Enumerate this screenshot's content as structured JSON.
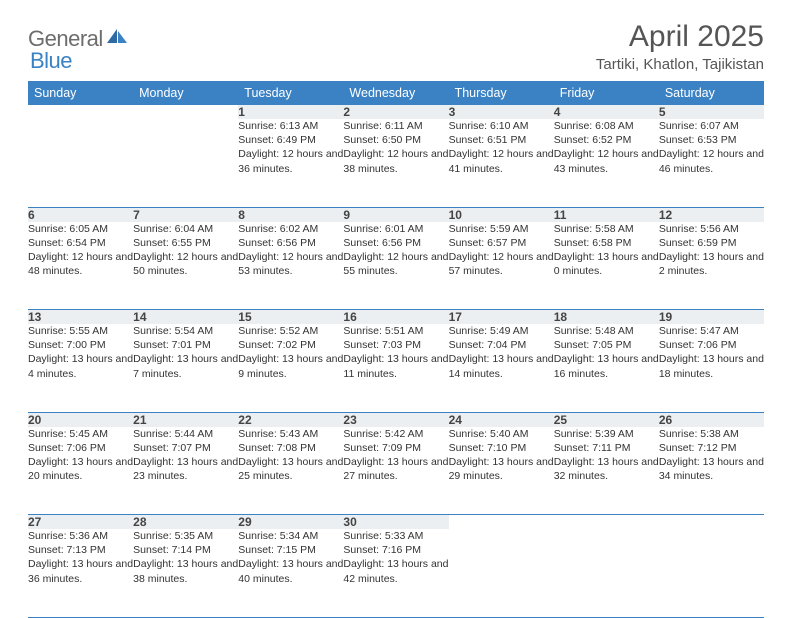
{
  "logo": {
    "text1": "General",
    "text2": "Blue"
  },
  "title": "April 2025",
  "location": "Tartiki, Khatlon, Tajikistan",
  "colors": {
    "header_bg": "#3b82c4",
    "daynum_bg": "#eceff1",
    "border": "#3b82c4",
    "title_color": "#555555",
    "logo_gray": "#6d6d6d",
    "logo_blue": "#3b82c4"
  },
  "weekdays": [
    "Sunday",
    "Monday",
    "Tuesday",
    "Wednesday",
    "Thursday",
    "Friday",
    "Saturday"
  ],
  "weeks": [
    {
      "nums": [
        "",
        "",
        "1",
        "2",
        "3",
        "4",
        "5"
      ],
      "cells": [
        null,
        null,
        {
          "sr": "Sunrise: 6:13 AM",
          "ss": "Sunset: 6:49 PM",
          "dl": "Daylight: 12 hours and 36 minutes."
        },
        {
          "sr": "Sunrise: 6:11 AM",
          "ss": "Sunset: 6:50 PM",
          "dl": "Daylight: 12 hours and 38 minutes."
        },
        {
          "sr": "Sunrise: 6:10 AM",
          "ss": "Sunset: 6:51 PM",
          "dl": "Daylight: 12 hours and 41 minutes."
        },
        {
          "sr": "Sunrise: 6:08 AM",
          "ss": "Sunset: 6:52 PM",
          "dl": "Daylight: 12 hours and 43 minutes."
        },
        {
          "sr": "Sunrise: 6:07 AM",
          "ss": "Sunset: 6:53 PM",
          "dl": "Daylight: 12 hours and 46 minutes."
        }
      ]
    },
    {
      "nums": [
        "6",
        "7",
        "8",
        "9",
        "10",
        "11",
        "12"
      ],
      "cells": [
        {
          "sr": "Sunrise: 6:05 AM",
          "ss": "Sunset: 6:54 PM",
          "dl": "Daylight: 12 hours and 48 minutes."
        },
        {
          "sr": "Sunrise: 6:04 AM",
          "ss": "Sunset: 6:55 PM",
          "dl": "Daylight: 12 hours and 50 minutes."
        },
        {
          "sr": "Sunrise: 6:02 AM",
          "ss": "Sunset: 6:56 PM",
          "dl": "Daylight: 12 hours and 53 minutes."
        },
        {
          "sr": "Sunrise: 6:01 AM",
          "ss": "Sunset: 6:56 PM",
          "dl": "Daylight: 12 hours and 55 minutes."
        },
        {
          "sr": "Sunrise: 5:59 AM",
          "ss": "Sunset: 6:57 PM",
          "dl": "Daylight: 12 hours and 57 minutes."
        },
        {
          "sr": "Sunrise: 5:58 AM",
          "ss": "Sunset: 6:58 PM",
          "dl": "Daylight: 13 hours and 0 minutes."
        },
        {
          "sr": "Sunrise: 5:56 AM",
          "ss": "Sunset: 6:59 PM",
          "dl": "Daylight: 13 hours and 2 minutes."
        }
      ]
    },
    {
      "nums": [
        "13",
        "14",
        "15",
        "16",
        "17",
        "18",
        "19"
      ],
      "cells": [
        {
          "sr": "Sunrise: 5:55 AM",
          "ss": "Sunset: 7:00 PM",
          "dl": "Daylight: 13 hours and 4 minutes."
        },
        {
          "sr": "Sunrise: 5:54 AM",
          "ss": "Sunset: 7:01 PM",
          "dl": "Daylight: 13 hours and 7 minutes."
        },
        {
          "sr": "Sunrise: 5:52 AM",
          "ss": "Sunset: 7:02 PM",
          "dl": "Daylight: 13 hours and 9 minutes."
        },
        {
          "sr": "Sunrise: 5:51 AM",
          "ss": "Sunset: 7:03 PM",
          "dl": "Daylight: 13 hours and 11 minutes."
        },
        {
          "sr": "Sunrise: 5:49 AM",
          "ss": "Sunset: 7:04 PM",
          "dl": "Daylight: 13 hours and 14 minutes."
        },
        {
          "sr": "Sunrise: 5:48 AM",
          "ss": "Sunset: 7:05 PM",
          "dl": "Daylight: 13 hours and 16 minutes."
        },
        {
          "sr": "Sunrise: 5:47 AM",
          "ss": "Sunset: 7:06 PM",
          "dl": "Daylight: 13 hours and 18 minutes."
        }
      ]
    },
    {
      "nums": [
        "20",
        "21",
        "22",
        "23",
        "24",
        "25",
        "26"
      ],
      "cells": [
        {
          "sr": "Sunrise: 5:45 AM",
          "ss": "Sunset: 7:06 PM",
          "dl": "Daylight: 13 hours and 20 minutes."
        },
        {
          "sr": "Sunrise: 5:44 AM",
          "ss": "Sunset: 7:07 PM",
          "dl": "Daylight: 13 hours and 23 minutes."
        },
        {
          "sr": "Sunrise: 5:43 AM",
          "ss": "Sunset: 7:08 PM",
          "dl": "Daylight: 13 hours and 25 minutes."
        },
        {
          "sr": "Sunrise: 5:42 AM",
          "ss": "Sunset: 7:09 PM",
          "dl": "Daylight: 13 hours and 27 minutes."
        },
        {
          "sr": "Sunrise: 5:40 AM",
          "ss": "Sunset: 7:10 PM",
          "dl": "Daylight: 13 hours and 29 minutes."
        },
        {
          "sr": "Sunrise: 5:39 AM",
          "ss": "Sunset: 7:11 PM",
          "dl": "Daylight: 13 hours and 32 minutes."
        },
        {
          "sr": "Sunrise: 5:38 AM",
          "ss": "Sunset: 7:12 PM",
          "dl": "Daylight: 13 hours and 34 minutes."
        }
      ]
    },
    {
      "nums": [
        "27",
        "28",
        "29",
        "30",
        "",
        "",
        ""
      ],
      "cells": [
        {
          "sr": "Sunrise: 5:36 AM",
          "ss": "Sunset: 7:13 PM",
          "dl": "Daylight: 13 hours and 36 minutes."
        },
        {
          "sr": "Sunrise: 5:35 AM",
          "ss": "Sunset: 7:14 PM",
          "dl": "Daylight: 13 hours and 38 minutes."
        },
        {
          "sr": "Sunrise: 5:34 AM",
          "ss": "Sunset: 7:15 PM",
          "dl": "Daylight: 13 hours and 40 minutes."
        },
        {
          "sr": "Sunrise: 5:33 AM",
          "ss": "Sunset: 7:16 PM",
          "dl": "Daylight: 13 hours and 42 minutes."
        },
        null,
        null,
        null
      ]
    }
  ]
}
